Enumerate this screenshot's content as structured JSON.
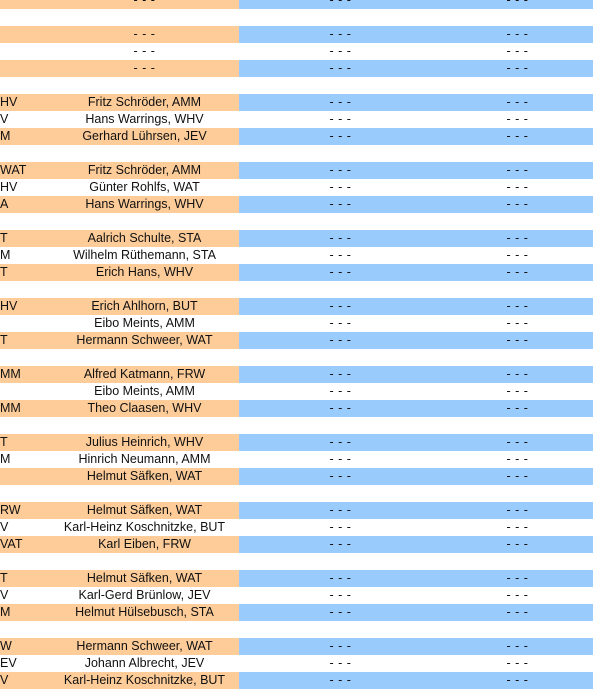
{
  "colors": {
    "orange": "#fdcc99",
    "blue": "#99ccfd",
    "white": "#ffffff"
  },
  "rows": [
    {
      "type": "data",
      "shade": "orange",
      "c0": "",
      "c1": "- - -",
      "c2": "- - -",
      "c3": "- - -"
    },
    {
      "type": "sep"
    },
    {
      "type": "data",
      "shade": "orange",
      "c0": "",
      "c1": "- - -",
      "c2": "- - -",
      "c3": "- - -"
    },
    {
      "type": "data",
      "shade": "white",
      "c0": "",
      "c1": "- - -",
      "c2": "- - -",
      "c3": "- - -"
    },
    {
      "type": "data",
      "shade": "orange",
      "c0": "",
      "c1": "- - -",
      "c2": "- - -",
      "c3": "- - -"
    },
    {
      "type": "sep"
    },
    {
      "type": "data",
      "shade": "orange",
      "c0": "HV",
      "c1": "Fritz Schröder, AMM",
      "c2": "- - -",
      "c3": "- - -"
    },
    {
      "type": "data",
      "shade": "white",
      "c0": "V",
      "c1": "Hans Warrings, WHV",
      "c2": "- - -",
      "c3": "- - -"
    },
    {
      "type": "data",
      "shade": "orange",
      "c0": "M",
      "c1": "Gerhard Lührsen, JEV",
      "c2": "- - -",
      "c3": "- - -"
    },
    {
      "type": "sep"
    },
    {
      "type": "data",
      "shade": "orange",
      "c0": "WAT",
      "c1": "Fritz Schröder, AMM",
      "c2": "- - -",
      "c3": "- - -"
    },
    {
      "type": "data",
      "shade": "white",
      "c0": "HV",
      "c1": "Günter Rohlfs, WAT",
      "c2": "- - -",
      "c3": "- - -"
    },
    {
      "type": "data",
      "shade": "orange",
      "c0": "A",
      "c1": "Hans Warrings, WHV",
      "c2": "- - -",
      "c3": "- - -"
    },
    {
      "type": "sep"
    },
    {
      "type": "data",
      "shade": "orange",
      "c0": "T",
      "c1": "Aalrich Schulte, STA",
      "c2": "- - -",
      "c3": "- - -"
    },
    {
      "type": "data",
      "shade": "white",
      "c0": "M",
      "c1": "Wilhelm Rüthemann, STA",
      "c2": "- - -",
      "c3": "- - -"
    },
    {
      "type": "data",
      "shade": "orange",
      "c0": "T",
      "c1": "Erich Hans, WHV",
      "c2": "- - -",
      "c3": "- - -"
    },
    {
      "type": "sep"
    },
    {
      "type": "data",
      "shade": "orange",
      "c0": "HV",
      "c1": "Erich Ahlhorn, BUT",
      "c2": "- - -",
      "c3": "- - -"
    },
    {
      "type": "data",
      "shade": "white",
      "c0": "",
      "c1": "Eibo Meints, AMM",
      "c2": "- - -",
      "c3": "- - -"
    },
    {
      "type": "data",
      "shade": "orange",
      "c0": "T",
      "c1": "Hermann Schweer, WAT",
      "c2": "- - -",
      "c3": "- - -"
    },
    {
      "type": "sep"
    },
    {
      "type": "data",
      "shade": "orange",
      "c0": "MM",
      "c1": "Alfred Katmann, FRW",
      "c2": "- - -",
      "c3": "- - -"
    },
    {
      "type": "data",
      "shade": "white",
      "c0": "",
      "c1": "Eibo Meints, AMM",
      "c2": "- - -",
      "c3": "- - -"
    },
    {
      "type": "data",
      "shade": "orange",
      "c0": "MM",
      "c1": "Theo Claasen, WHV",
      "c2": "- - -",
      "c3": "- - -"
    },
    {
      "type": "sep"
    },
    {
      "type": "data",
      "shade": "orange",
      "c0": "T",
      "c1": "Julius Heinrich, WHV",
      "c2": "- - -",
      "c3": "- - -"
    },
    {
      "type": "data",
      "shade": "white",
      "c0": "M",
      "c1": "Hinrich Neumann, AMM",
      "c2": "- - -",
      "c3": "- - -"
    },
    {
      "type": "data",
      "shade": "orange",
      "c0": "",
      "c1": "Helmut Säfken, WAT",
      "c2": "- - -",
      "c3": "- - -"
    },
    {
      "type": "sep"
    },
    {
      "type": "data",
      "shade": "orange",
      "c0": "RW",
      "c1": "Helmut Säfken, WAT",
      "c2": "- - -",
      "c3": "- - -"
    },
    {
      "type": "data",
      "shade": "white",
      "c0": "V",
      "c1": "Karl-Heinz Koschnitzke, BUT",
      "c2": "- - -",
      "c3": "- - -"
    },
    {
      "type": "data",
      "shade": "orange",
      "c0": "VAT",
      "c1": "Karl Eiben, FRW",
      "c2": "- - -",
      "c3": "- - -"
    },
    {
      "type": "sep"
    },
    {
      "type": "data",
      "shade": "orange",
      "c0": "T",
      "c1": "Helmut Säfken, WAT",
      "c2": "- - -",
      "c3": "- - -"
    },
    {
      "type": "data",
      "shade": "white",
      "c0": "V",
      "c1": "Karl-Gerd Brünlow, JEV",
      "c2": "- - -",
      "c3": "- - -"
    },
    {
      "type": "data",
      "shade": "orange",
      "c0": "M",
      "c1": "Helmut Hülsebusch, STA",
      "c2": "- - -",
      "c3": "- - -"
    },
    {
      "type": "sep"
    },
    {
      "type": "data",
      "shade": "orange",
      "c0": "W",
      "c1": "Hermann Schweer, WAT",
      "c2": "- - -",
      "c3": "- - -"
    },
    {
      "type": "data",
      "shade": "white",
      "c0": "EV",
      "c1": "Johann Albrecht, JEV",
      "c2": "- - -",
      "c3": "- - -"
    },
    {
      "type": "data",
      "shade": "orange",
      "c0": "V",
      "c1": "Karl-Heinz Koschnitzke, BUT",
      "c2": "- - -",
      "c3": "- - -"
    }
  ]
}
